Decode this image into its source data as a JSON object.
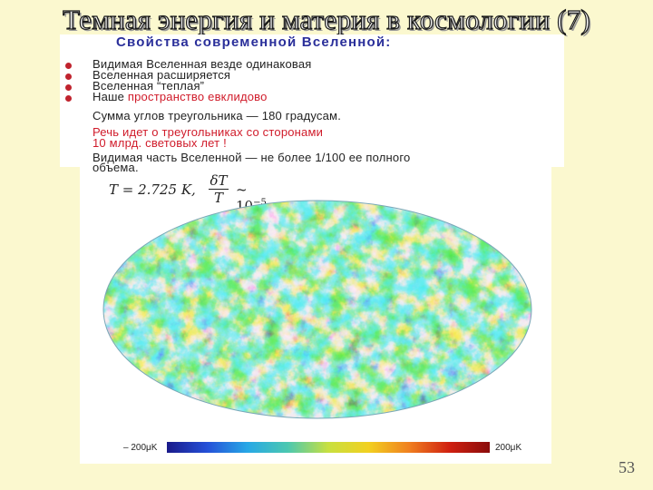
{
  "slide": {
    "title": "Темная энергия и материя в космологии (7)",
    "page_number": "53"
  },
  "properties": {
    "heading": "Свойства современной Вселенной:",
    "items": [
      {
        "text": "Видимая Вселенная везде одинаковая"
      },
      {
        "text": "Вселенная расширяется"
      },
      {
        "text": "Вселенная “теплая”"
      },
      {
        "prefix": "Наше ",
        "accent": "пространство евклидово"
      },
      {
        "text": "Сумма углов треугольника — 180 градусам."
      },
      {
        "text": "Речь идет о треугольниках со сторонами"
      },
      {
        "text": "10 млрд. световых лет !"
      },
      {
        "text": "Видимая часть Вселенной — не более 1/100 ее полного"
      },
      {
        "text": "объема."
      }
    ]
  },
  "formula": {
    "temperature": "T = 2.725 K,",
    "numerator": "δT",
    "denominator": "T",
    "relation": "~ 10",
    "exponent": "−5"
  },
  "cmb_map": {
    "scale_min": "– 200μK",
    "scale_max": "200μK",
    "colors": [
      "#1a1a8a",
      "#2550d8",
      "#27a8e6",
      "#4cc8b0",
      "#c8e040",
      "#f2d020",
      "#f08020",
      "#d02010"
    ]
  }
}
